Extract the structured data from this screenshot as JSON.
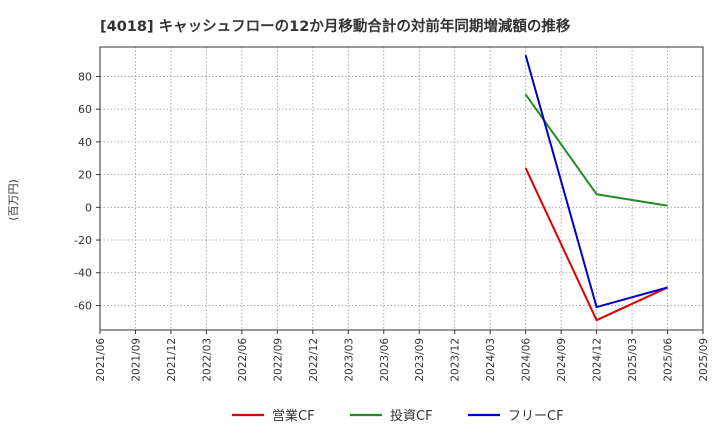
{
  "chart_data": {
    "type": "line",
    "title": "[4018]  キャッシュフローの12か月移動合計の対前年同期増減額の推移",
    "ylabel": "(百万円)",
    "xlabel": "",
    "ylim": [
      -75,
      98
    ],
    "yticks": [
      80,
      60,
      40,
      20,
      0,
      -20,
      -40,
      -60
    ],
    "x": [
      "2021/06",
      "2021/09",
      "2021/12",
      "2022/03",
      "2022/06",
      "2022/09",
      "2022/12",
      "2023/03",
      "2023/06",
      "2023/09",
      "2023/12",
      "2024/03",
      "2024/06",
      "2024/09",
      "2024/12",
      "2025/03",
      "2025/06",
      "2025/09"
    ],
    "grid": true,
    "legend_position": "bottom",
    "series": [
      {
        "name": "営業CF",
        "color": "#dd0000",
        "points": [
          [
            "2024/06",
            24
          ],
          [
            "2024/12",
            -69
          ],
          [
            "2025/06",
            -49
          ]
        ]
      },
      {
        "name": "投資CF",
        "color": "#228b22",
        "points": [
          [
            "2024/06",
            69
          ],
          [
            "2024/12",
            8
          ],
          [
            "2025/06",
            1
          ]
        ]
      },
      {
        "name": "フリーCF",
        "color": "#0000cc",
        "points": [
          [
            "2024/06",
            93
          ],
          [
            "2024/12",
            -61
          ],
          [
            "2025/06",
            -49
          ]
        ]
      }
    ]
  }
}
